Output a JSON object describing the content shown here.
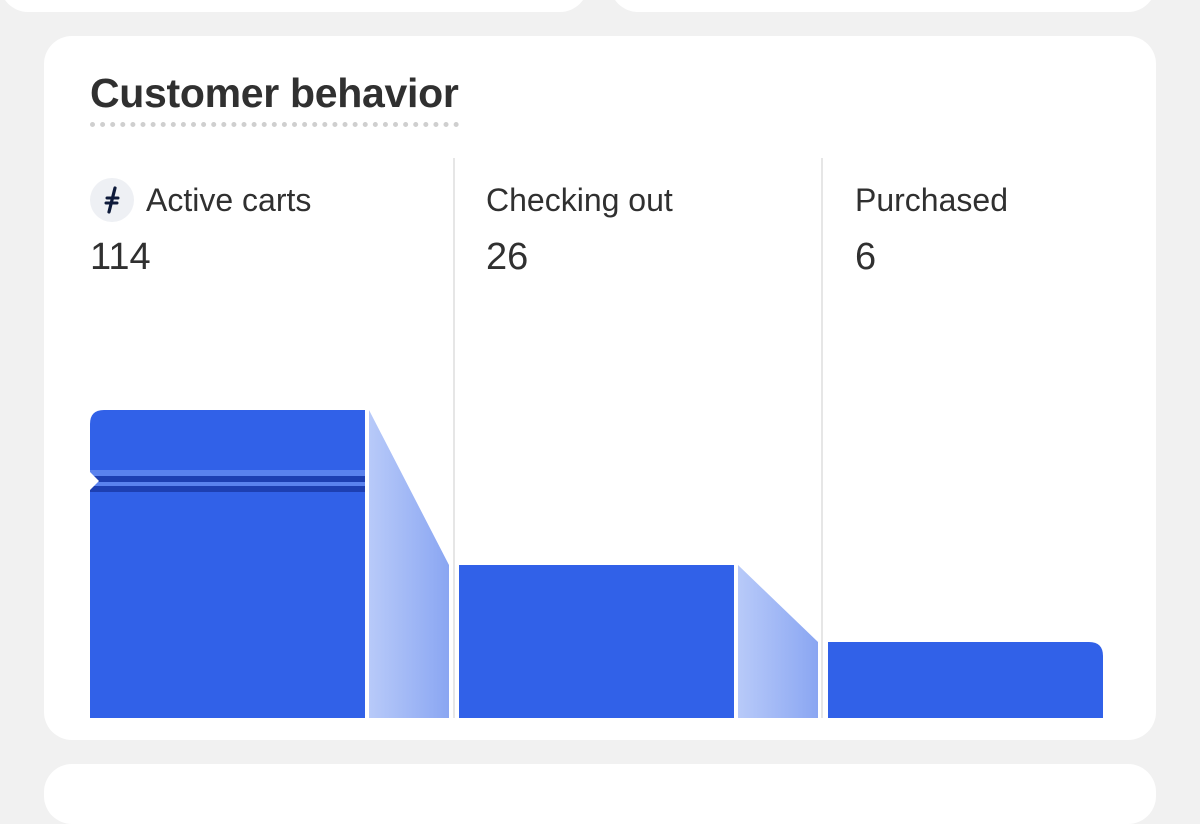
{
  "card": {
    "title": "Customer behavior"
  },
  "stages": [
    {
      "label": "Active carts",
      "value": "114",
      "icon": "shopify-flow-icon"
    },
    {
      "label": "Checking out",
      "value": "26"
    },
    {
      "label": "Purchased",
      "value": "6"
    }
  ],
  "colors": {
    "bar": "#3161e8",
    "connector_light": "#a3baf7",
    "connector_dark": "#7f9df1",
    "stripe_light": "#5a82ee",
    "stripe_dark": "#1d3fb2"
  },
  "chart_data": {
    "type": "bar",
    "categories": [
      "Active carts",
      "Checking out",
      "Purchased"
    ],
    "values": [
      114,
      26,
      6
    ],
    "title": "Customer behavior",
    "xlabel": "",
    "ylabel": ""
  }
}
